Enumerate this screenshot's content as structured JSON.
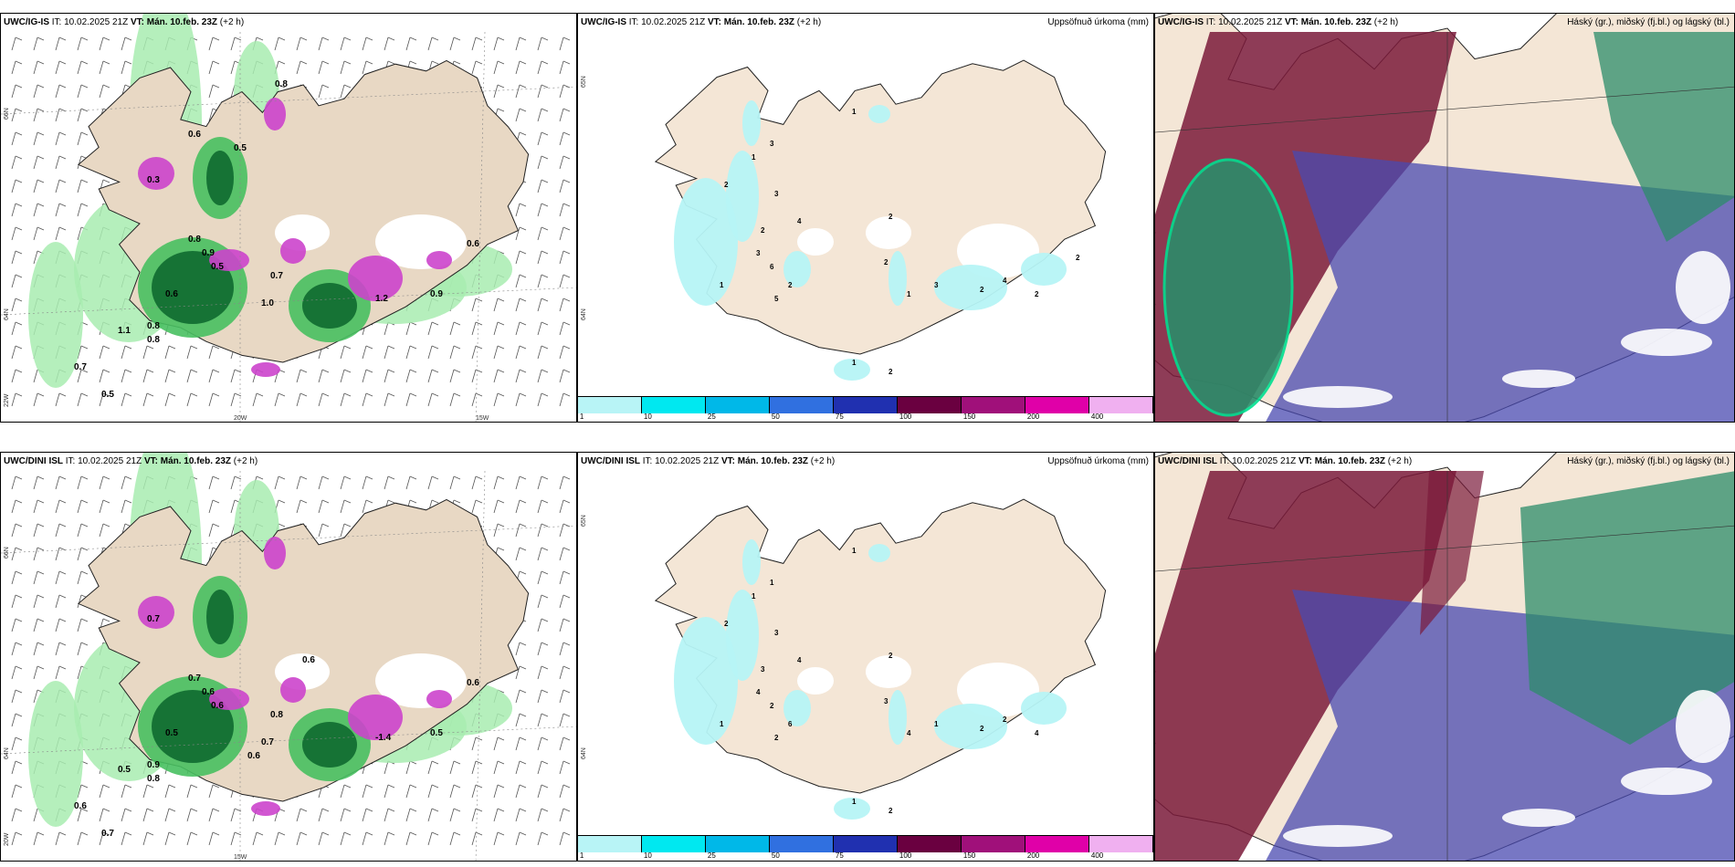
{
  "rows": [
    {
      "model_tag": "UWC/IG-IS",
      "it_label": "IT:",
      "it_value": "10.02.2025 21Z",
      "vt_label": "VT:",
      "vt_value": "Mán. 10.feb. 23Z",
      "offset": "(+2 h)",
      "precip_values_left": [
        "0.8",
        "0.6",
        "0.5",
        "0.3",
        "0.8",
        "0.5",
        "0.6",
        "0.7",
        "0.8",
        "0.9",
        "1.0",
        "1.2",
        "1.1",
        "0.8",
        "0.7",
        "0.5",
        "0.9",
        "0.6"
      ],
      "precip_values_mid": [
        "1",
        "3",
        "1",
        "2",
        "3",
        "4",
        "2",
        "3",
        "1",
        "6",
        "2",
        "5",
        "2",
        "2",
        "1",
        "2",
        "1",
        "3",
        "2",
        "4",
        "2",
        "2"
      ],
      "coord_left": [
        "66N",
        "64N",
        "22W",
        "20W",
        "15W"
      ],
      "coord_mid": [
        "65N",
        "64N"
      ]
    },
    {
      "model_tag": "UWC/DINI ISL",
      "it_label": "IT:",
      "it_value": "10.02.2025 21Z",
      "vt_label": "VT:",
      "vt_value": "Mán. 10.feb. 23Z",
      "offset": "(+2 h)",
      "precip_values_left": [
        "0.7",
        "0.7",
        "0.6",
        "0.5",
        "0.8",
        "0.9",
        "0.6",
        "0.7",
        "-1.4",
        "0.5",
        "0.8",
        "0.6",
        "0.7",
        "0.5",
        "0.6",
        "0.6",
        "0.6"
      ],
      "precip_values_mid": [
        "1",
        "1",
        "1",
        "2",
        "3",
        "4",
        "3",
        "4",
        "1",
        "2",
        "6",
        "2",
        "3",
        "2",
        "1",
        "2",
        "4",
        "1",
        "2",
        "2",
        "4"
      ],
      "coord_left": [
        "66N",
        "64N",
        "20W",
        "15W"
      ],
      "coord_mid": [
        "65N",
        "64N"
      ]
    }
  ],
  "precip_title": "Uppsöfnuð úrkoma (mm)",
  "cloud_title": "Háský (gr.), miðský (fj.bl.) og lágský (bl.)",
  "scale": {
    "labels": [
      "1",
      "10",
      "25",
      "50",
      "75",
      "100",
      "150",
      "200",
      "400"
    ],
    "colors": [
      "#b8f4f6",
      "#00e8f0",
      "#00b8e8",
      "#3070e0",
      "#2030b0",
      "#6a0040",
      "#a0107a",
      "#e000a8",
      "#f0b0f0"
    ]
  },
  "colors": {
    "land": "#f4e6d6",
    "land_left": "#e8d8c4",
    "precip_light": "#b6f4f6",
    "green_light": "#a8ecb0",
    "green_mid": "#48c060",
    "green_dark": "#106a30",
    "magenta": "#cc44cc",
    "cloud_high": "#7a1a3a",
    "cloud_mid": "#4a4ab0",
    "cloud_low": "#2c8c6a"
  }
}
